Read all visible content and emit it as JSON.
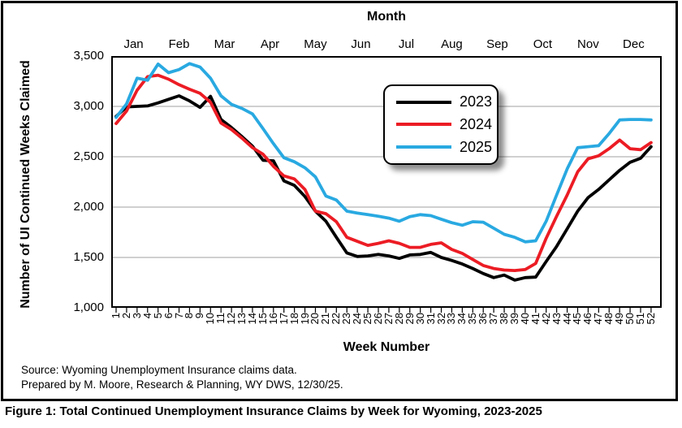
{
  "figure": {
    "caption": "Figure 1: Total Continued Unemployment Insurance Claims by Week for Wyoming, 2023-2025"
  },
  "source": {
    "line1": "Source: Wyoming Unemployment Insurance claims data.",
    "line2": "Prepared by M. Moore, Research & Planning, WY DWS, 12/30/25."
  },
  "axes": {
    "top_title": "Month",
    "bottom_title": "Week Number",
    "left_title": "Number of UI Continued Weeks Claimed",
    "month_labels": [
      "Jan",
      "Feb",
      "Mar",
      "Apr",
      "May",
      "Jun",
      "Jul",
      "Aug",
      "Sep",
      "Oct",
      "Nov",
      "Dec"
    ],
    "y_tick_labels": [
      "3,500",
      "3,000",
      "2,500",
      "2,000",
      "1,500",
      "1,000"
    ]
  },
  "colors": {
    "black_2023": "#000000",
    "red_2024": "#EC1C24",
    "blue_2025": "#29A9E1",
    "gridline": "#B3B3B3"
  },
  "chart_data": {
    "type": "line",
    "title": "Total Continued Unemployment Insurance Claims by Week for Wyoming, 2023-2025",
    "xlabel": "Week Number",
    "ylabel": "Number of UI Continued Weeks Claimed",
    "x_axis_secondary_label": "Month",
    "ylim": [
      1000,
      3500
    ],
    "y_ticks": [
      3500,
      3000,
      2500,
      2000,
      1500,
      1000
    ],
    "gridlines": [
      3000,
      2500,
      2000,
      1500
    ],
    "grid": "horizontal only",
    "legend_position": "upper center, boxed with drop shadow",
    "x": [
      1,
      2,
      3,
      4,
      5,
      6,
      7,
      8,
      9,
      10,
      11,
      12,
      13,
      14,
      15,
      16,
      17,
      18,
      19,
      20,
      21,
      22,
      23,
      24,
      25,
      26,
      27,
      28,
      29,
      30,
      31,
      32,
      33,
      34,
      35,
      36,
      37,
      38,
      39,
      40,
      41,
      42,
      43,
      44,
      45,
      46,
      47,
      48,
      49,
      50,
      51,
      52
    ],
    "series": [
      {
        "name": "2023",
        "color": "#000000",
        "values": [
          2900,
          2995,
          3000,
          3005,
          3035,
          3070,
          3105,
          3055,
          2990,
          3100,
          2870,
          2790,
          2700,
          2605,
          2465,
          2460,
          2260,
          2215,
          2105,
          1960,
          1860,
          1700,
          1545,
          1510,
          1515,
          1530,
          1515,
          1490,
          1525,
          1530,
          1550,
          1500,
          1470,
          1435,
          1390,
          1340,
          1300,
          1325,
          1275,
          1300,
          1305,
          1460,
          1610,
          1785,
          1960,
          2095,
          2175,
          2270,
          2365,
          2445,
          2485,
          2600
        ]
      },
      {
        "name": "2024",
        "color": "#EC1C24",
        "values": [
          2830,
          2955,
          3160,
          3295,
          3310,
          3270,
          3215,
          3170,
          3130,
          3040,
          2835,
          2770,
          2685,
          2590,
          2525,
          2405,
          2310,
          2280,
          2175,
          1960,
          1935,
          1855,
          1700,
          1660,
          1620,
          1640,
          1665,
          1640,
          1600,
          1600,
          1630,
          1645,
          1580,
          1540,
          1480,
          1420,
          1390,
          1375,
          1370,
          1380,
          1440,
          1690,
          1910,
          2120,
          2350,
          2480,
          2510,
          2580,
          2665,
          2580,
          2570,
          2640
        ]
      },
      {
        "name": "2025",
        "color": "#29A9E1",
        "values": [
          2890,
          3025,
          3280,
          3260,
          3420,
          3335,
          3365,
          3425,
          3390,
          3280,
          3105,
          3020,
          2980,
          2925,
          2780,
          2630,
          2490,
          2450,
          2390,
          2300,
          2110,
          2070,
          1960,
          1940,
          1925,
          1910,
          1890,
          1860,
          1905,
          1925,
          1915,
          1880,
          1845,
          1820,
          1855,
          1850,
          1790,
          1730,
          1700,
          1655,
          1665,
          1860,
          2120,
          2380,
          2590,
          2600,
          2610,
          2730,
          2865,
          2870,
          2870,
          2865
        ]
      }
    ]
  }
}
